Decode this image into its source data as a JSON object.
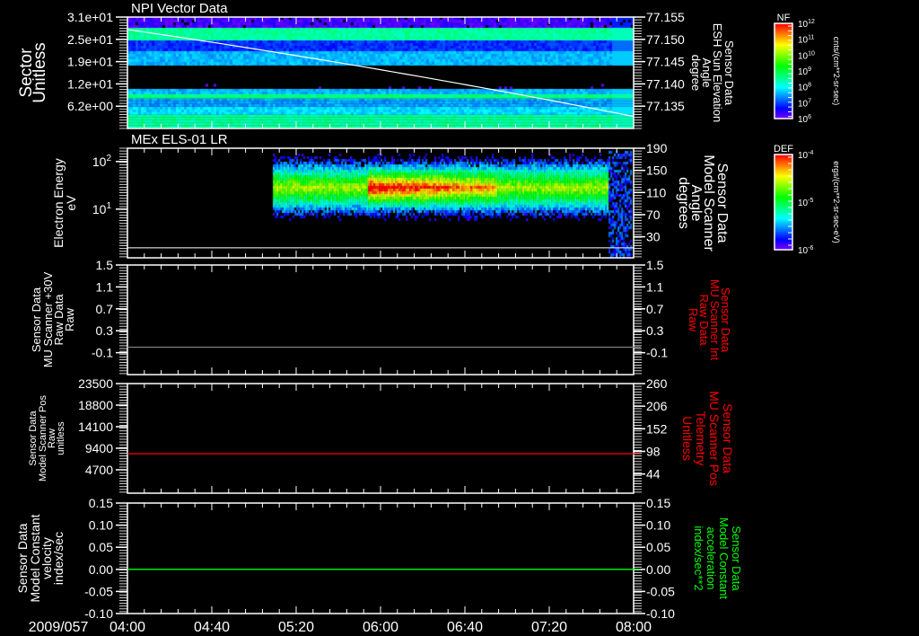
{
  "date_label": "2009/057",
  "time_axis": {
    "start": "04:00",
    "end": "08:00",
    "labels": [
      "04:00",
      "04:40",
      "05:20",
      "06:00",
      "06:40",
      "07:20",
      "08:00"
    ],
    "minor_tick_minutes": 8
  },
  "colors": {
    "axis": "#ffffff",
    "red": "#ff0000",
    "green": "#00ff00",
    "gray": "#808080"
  },
  "colorbars": [
    {
      "title": "NF",
      "units": "cnts/(cm**2-sr-sec)",
      "labels": [
        [
          "10",
          "12"
        ],
        [
          "10",
          "11"
        ],
        [
          "10",
          "10"
        ],
        [
          "10",
          "9"
        ],
        [
          "10",
          "8"
        ],
        [
          "10",
          "7"
        ],
        [
          "10",
          "6"
        ]
      ]
    },
    {
      "title": "DEF",
      "units": "ergs/(cm**2-sr-sec-eV)",
      "labels": [
        [
          "10",
          "-4"
        ],
        [
          "10",
          "-5"
        ],
        [
          "10",
          "-6"
        ]
      ]
    }
  ],
  "chart_data": [
    {
      "type": "heatmap",
      "title": "NPI Vector Data",
      "ylabel": [
        "Sector",
        "Unitless"
      ],
      "ylim": [
        0,
        31
      ],
      "yticks": [
        6.2,
        12.4,
        18.6,
        24.8,
        31
      ],
      "yticklabels": [
        "6.2e+00",
        "1.2e+01",
        "1.9e+01",
        "2.5e+01",
        "3.1e+01"
      ],
      "bands": [
        {
          "from": 28,
          "to": 31,
          "level": 0.05
        },
        {
          "from": 24.5,
          "to": 28,
          "level": 0.42
        },
        {
          "from": 21.5,
          "to": 24.5,
          "level": 0.15
        },
        {
          "from": 17.5,
          "to": 21.5,
          "level": 0.27
        },
        {
          "from": 11,
          "to": 12.4,
          "level": -1
        },
        {
          "from": 9.5,
          "to": 11,
          "level": 0.27
        },
        {
          "from": 8.3,
          "to": 9.5,
          "level": 0.45
        },
        {
          "from": 6,
          "to": 8.3,
          "level": 0.25
        },
        {
          "from": 3.8,
          "to": 6,
          "level": 0.3
        },
        {
          "from": 0,
          "to": 3.8,
          "level": 0.42
        }
      ],
      "right_axis": {
        "ylabel": [
          "Sensor Data",
          "ESH Sun Elevation",
          "Angle",
          "degree"
        ],
        "ylim": [
          77.13,
          77.155
        ],
        "yticks": [
          77.135,
          77.14,
          77.145,
          77.15,
          77.155
        ],
        "yticklabels": [
          "77.135",
          "77.140",
          "77.145",
          "77.150",
          "77.155"
        ],
        "line": {
          "x_minutes": [
            0,
            240
          ],
          "y": [
            77.1522,
            77.1327
          ],
          "color": "#ffffff"
        }
      }
    },
    {
      "type": "heatmap",
      "title": "MEx ELS-01 LR",
      "ylabel": [
        "Electron Energy",
        "eV"
      ],
      "yscale": "log",
      "ylim": [
        0.95,
        190
      ],
      "yticks": [
        10,
        100
      ],
      "yticklabels": [
        [
          "10",
          "1"
        ],
        [
          "10",
          "2"
        ]
      ],
      "data_start_minutes": 69,
      "data_end_minutes": 228,
      "peak_energy_ev": 30,
      "intense_interval_minutes": [
        114,
        175
      ],
      "right_axis": {
        "ylabel": [
          "Sensor Data",
          "Model Scanner",
          "Angle",
          "degrees"
        ],
        "ylim": [
          -8,
          190
        ],
        "yticks": [
          30,
          70,
          110,
          150,
          190
        ],
        "yticklabels": [
          "30",
          "70",
          "110",
          "150",
          "190"
        ],
        "line": {
          "value": 10,
          "color": "#ffffff"
        }
      }
    },
    {
      "type": "line",
      "ylabel": [
        "Sensor Data",
        "MU Scanner +30V",
        "Raw Data",
        "Raw"
      ],
      "ylim": [
        -0.5,
        1.5
      ],
      "yticks": [
        -0.1,
        0.3,
        0.7,
        1.1,
        1.5
      ],
      "yticklabels": [
        "-0.1",
        "0.3",
        "0.7",
        "1.1",
        "1.5"
      ],
      "series": [
        {
          "name": "MU Scanner Int Raw Data",
          "value": 0.0,
          "color": "#808080"
        }
      ],
      "right_axis": {
        "ylabel": [
          "Sensor Data",
          "MU Scanner Int",
          "Raw Data",
          "Raw"
        ],
        "label_color": "#ff0000",
        "yticks": [
          -0.1,
          0.3,
          0.7,
          1.1,
          1.5
        ],
        "yticklabels": [
          "-0.1",
          "0.3",
          "0.7",
          "1.1",
          "1.5"
        ]
      }
    },
    {
      "type": "line",
      "ylabel": [
        "Sensor Data",
        "Model Scanner Pos",
        "Raw",
        "unitless"
      ],
      "ylim": [
        -400,
        23500
      ],
      "yticks": [
        4700,
        9400,
        14100,
        18800,
        23500
      ],
      "yticklabels": [
        "4700",
        "9400",
        "14100",
        "18800",
        "23500"
      ],
      "series": [
        {
          "name": "MU Scanner Pos Telemetry",
          "value": 8200,
          "color": "#ff0000"
        }
      ],
      "right_axis": {
        "ylabel": [
          "Sensor Data",
          "MU Scanner Pos",
          "Telemetry",
          "Unitless"
        ],
        "label_color": "#ff0000",
        "yticks": [
          44,
          98,
          152,
          206,
          260
        ],
        "yticklabels": [
          "44",
          "98",
          "152",
          "206",
          "260"
        ]
      }
    },
    {
      "type": "line",
      "ylabel": [
        "Sensor Data",
        "Model Constant",
        "velocity",
        "index/sec"
      ],
      "ylim": [
        -0.1,
        0.15
      ],
      "yticks": [
        -0.1,
        -0.05,
        0.0,
        0.05,
        0.1,
        0.15
      ],
      "yticklabels": [
        "-0.10",
        "-0.05",
        "0.00",
        "0.05",
        "0.10",
        "0.15"
      ],
      "series": [
        {
          "name": "Model Constant acceleration",
          "value": 0.0,
          "color": "#00ff00"
        }
      ],
      "right_axis": {
        "ylabel": [
          "Sensor Data",
          "Model Constant",
          "acceleration",
          "index/sec**2"
        ],
        "label_color": "#00ff00",
        "yticks": [
          -0.1,
          -0.05,
          0.0,
          0.05,
          0.1,
          0.15
        ],
        "yticklabels": [
          "-0.10",
          "-0.05",
          "0.00",
          "0.05",
          "0.10",
          "0.15"
        ]
      }
    }
  ]
}
